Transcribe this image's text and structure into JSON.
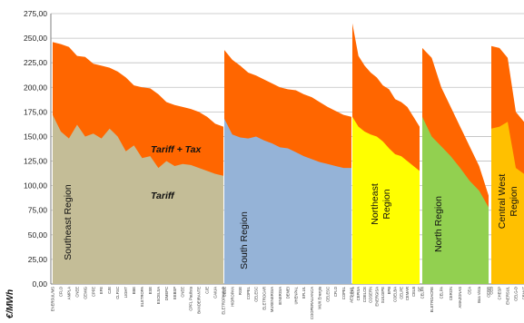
{
  "chart_data": {
    "type": "area",
    "ylabel": "€/MWh",
    "ylim": [
      0,
      275
    ],
    "yticks": [
      "0,00",
      "25,00",
      "50,00",
      "75,00",
      "100,00",
      "125,00",
      "150,00",
      "175,00",
      "200,00",
      "225,00",
      "250,00",
      "275,00"
    ],
    "grid": true,
    "annotations": {
      "tax_label": "Tariff + Tax",
      "tariff_label": "Tariff"
    },
    "colors": {
      "tax": "#ff6600",
      "southeast": "#c4bd97",
      "south": "#95b3d7",
      "northeast": "#ffff00",
      "north": "#92d050",
      "central_west": "#ffc000"
    },
    "regions": [
      {
        "name": "Southeast Region",
        "label_lines": [
          "Southeast Region"
        ],
        "color_key": "southeast",
        "categories": [
          "ENERSUL/MS",
          "CFLO",
          "AMPLA",
          "CNEE",
          "CEMIG",
          "CPFE",
          "EFE",
          "CJE",
          "CLFSC",
          "LIGHT",
          "EBE",
          "ELETROPA",
          "ESE",
          "ESCELSA",
          "DMEPC",
          "EEBSP",
          "CNEE",
          "CPFL Paulista",
          "BANDEIRANTE",
          "CJE",
          "CAIUA",
          "ELETROPAULO"
        ],
        "tariff_tax": [
          246,
          244,
          241,
          232,
          231,
          224,
          222,
          220,
          216,
          210,
          202,
          200,
          199,
          193,
          185,
          182,
          180,
          178,
          175,
          170,
          163,
          160
        ],
        "tariff": [
          172,
          155,
          148,
          162,
          150,
          153,
          148,
          158,
          150,
          135,
          141,
          128,
          130,
          118,
          125,
          120,
          122,
          121,
          118,
          115,
          112,
          110
        ]
      },
      {
        "name": "South Region",
        "label_lines": [
          "South Region"
        ],
        "color_key": "south",
        "categories": [
          "CEEE",
          "HIDROPAN",
          "RGE",
          "COPEL",
          "CELESC",
          "ELETROCAR",
          "MUXENERGIA",
          "IENERGIA",
          "DEMEI",
          "UHENPAL",
          "EFLUL",
          "COOPERALIANCA",
          "MUX Energia",
          "CELESC",
          "CFLO",
          "COPEL",
          "AES SUL"
        ],
        "tariff_tax": [
          238,
          228,
          222,
          215,
          212,
          208,
          204,
          200,
          198,
          197,
          193,
          190,
          185,
          180,
          176,
          172,
          170
        ],
        "tariff": [
          168,
          152,
          149,
          148,
          150,
          146,
          143,
          139,
          138,
          134,
          130,
          127,
          124,
          122,
          120,
          118,
          118
        ]
      },
      {
        "name": "Northeast Region",
        "label_lines": [
          "Northeast",
          "Region"
        ],
        "color_key": "northeast",
        "categories": [
          "CEAL",
          "CEPISA",
          "COELCE",
          "COSERN",
          "ENERGISA",
          "SULGIPE",
          "EPB",
          "COELBA",
          "CELPE",
          "CEMAR",
          "CELB",
          "SE"
        ],
        "tariff_tax": [
          265,
          232,
          222,
          215,
          210,
          202,
          198,
          188,
          185,
          180,
          170,
          160
        ],
        "tariff": [
          170,
          160,
          155,
          152,
          150,
          145,
          138,
          132,
          130,
          125,
          120,
          115
        ]
      },
      {
        "name": "North Region",
        "label_lines": [
          "North Region"
        ],
        "color_key": "north",
        "categories": [
          "CELPA",
          "ELETROACRE",
          "CELPA",
          "CERON",
          "AMAZONAS",
          "CEA",
          "Boa Vista",
          "CERR"
        ],
        "tariff_tax": [
          240,
          230,
          200,
          180,
          160,
          140,
          120,
          90
        ],
        "tariff": [
          170,
          150,
          140,
          130,
          118,
          105,
          95,
          78
        ]
      },
      {
        "name": "Central West Region",
        "label_lines": [
          "Central West",
          "Region"
        ],
        "color_key": "central_west",
        "categories": [
          "CEB",
          "CHESP",
          "ENERSUL",
          "CELG-D",
          "CEMAT"
        ],
        "tariff_tax": [
          242,
          240,
          230,
          175,
          165
        ],
        "tariff": [
          158,
          160,
          165,
          118,
          112
        ]
      }
    ]
  }
}
